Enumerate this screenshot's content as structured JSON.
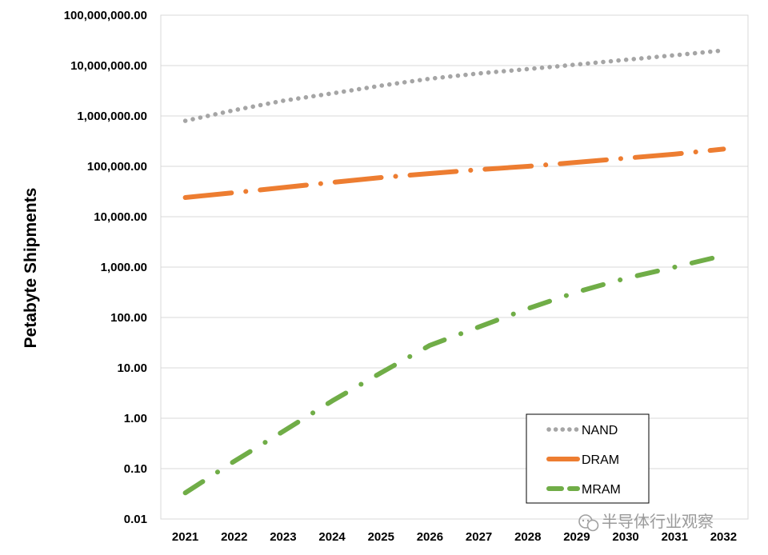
{
  "chart_data": {
    "type": "line",
    "title": "",
    "xlabel": "",
    "ylabel": "Petabyte Shipments",
    "y_scale": "log",
    "ylim": [
      0.01,
      100000000
    ],
    "y_ticks": [
      0.01,
      0.1,
      1,
      10,
      100,
      1000,
      10000,
      100000,
      1000000,
      10000000,
      100000000
    ],
    "y_tick_labels": [
      "0.01",
      "0.10",
      "1.00",
      "10.00",
      "100.00",
      "1,000.00",
      "10,000.00",
      "100,000.00",
      "1,000,000.00",
      "10,000,000.00",
      "100,000,000.00"
    ],
    "categories": [
      "2021",
      "2022",
      "2023",
      "2024",
      "2025",
      "2026",
      "2027",
      "2028",
      "2029",
      "2030",
      "2031",
      "2032"
    ],
    "grid": "horizontal",
    "legend_position": "bottom-right",
    "series": [
      {
        "name": "NAND",
        "color": "#a5a5a5",
        "style": "dotted",
        "values": [
          800000,
          1300000,
          2000000,
          2800000,
          4000000,
          5500000,
          7000000,
          8500000,
          10500000,
          13000000,
          16000000,
          20000000
        ]
      },
      {
        "name": "DRAM",
        "color": "#ed7d31",
        "style": "dash-dot",
        "values": [
          24000,
          30000,
          38000,
          48000,
          60000,
          72000,
          86000,
          100000,
          120000,
          145000,
          175000,
          220000
        ]
      },
      {
        "name": "MRAM",
        "color": "#70ad47",
        "style": "long-dash-dot",
        "values": [
          0.033,
          0.14,
          0.55,
          2.2,
          8.0,
          28,
          65,
          150,
          320,
          600,
          1000,
          1700
        ]
      }
    ]
  },
  "watermark": {
    "text": "半导体行业观察",
    "icon": "wechat-icon"
  }
}
